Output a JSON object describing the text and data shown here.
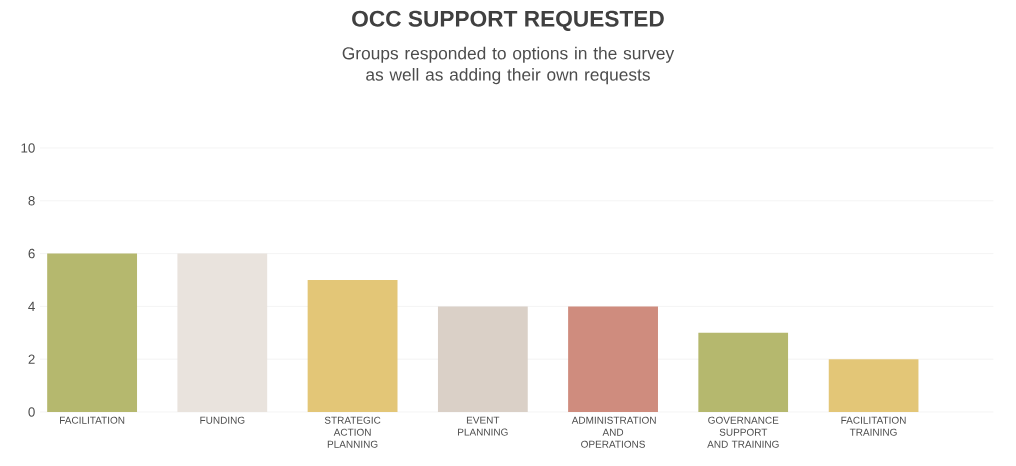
{
  "chart_data": {
    "type": "bar",
    "title": "OCC SUPPORT REQUESTED",
    "subtitle": "Groups responded to options in the survey as well as adding their own requests",
    "categories": [
      "FACILITATION",
      "FUNDING",
      "STRATEGIC ACTION PLANNING",
      "EVENT PLANNING",
      "ADMINISTRATION AND OPERATIONS",
      "GOVERNANCE SUPPORT AND TRAINING",
      "FACILITATION TRAINING"
    ],
    "values": [
      6,
      6,
      5,
      4,
      4,
      3,
      2
    ],
    "colors": [
      "#b5b86e",
      "#e9e3dd",
      "#e3c677",
      "#dad0c7",
      "#cf8c7e",
      "#b5b86e",
      "#e3c677"
    ],
    "ylim": [
      0,
      10
    ],
    "yticks": [
      0,
      2,
      4,
      6,
      8,
      10
    ],
    "grid": "y"
  }
}
